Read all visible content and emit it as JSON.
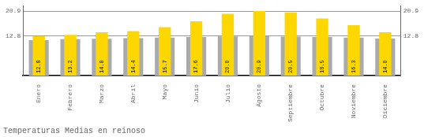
{
  "chart_data": {
    "type": "bar",
    "title": "Temperaturas Medias en reinoso",
    "categories": [
      "Enero",
      "Febrero",
      "Marzo",
      "Abril",
      "Mayo",
      "Junio",
      "Julio",
      "Agosto",
      "Septiembre",
      "Octubre",
      "Noviembre",
      "Diciembre"
    ],
    "series": [
      {
        "color": "#AAAAAA",
        "values": [
          11.5,
          11.8,
          11.9,
          12.1,
          12.3,
          12.5,
          12.7,
          12.8,
          12.6,
          12.5,
          12.3,
          12.0
        ]
      },
      {
        "color": "#FFD700",
        "values": [
          12.8,
          13.2,
          14.0,
          14.4,
          15.7,
          17.6,
          20.0,
          20.9,
          20.5,
          18.5,
          16.3,
          14.0
        ],
        "value_labels": [
          "12.8",
          "13.2",
          "14.0",
          "14.4",
          "15.7",
          "17.6",
          "20.0",
          "20.9",
          "20.5",
          "18.5",
          "16.3",
          "14.0"
        ],
        "data_labels": true
      }
    ],
    "ylim": [
      0,
      22.5
    ],
    "yticks": [
      12.8,
      20.9
    ],
    "y2lim": [
      0,
      22.5
    ],
    "y2ticks": [
      12.8,
      20.9
    ],
    "grid": true
  }
}
